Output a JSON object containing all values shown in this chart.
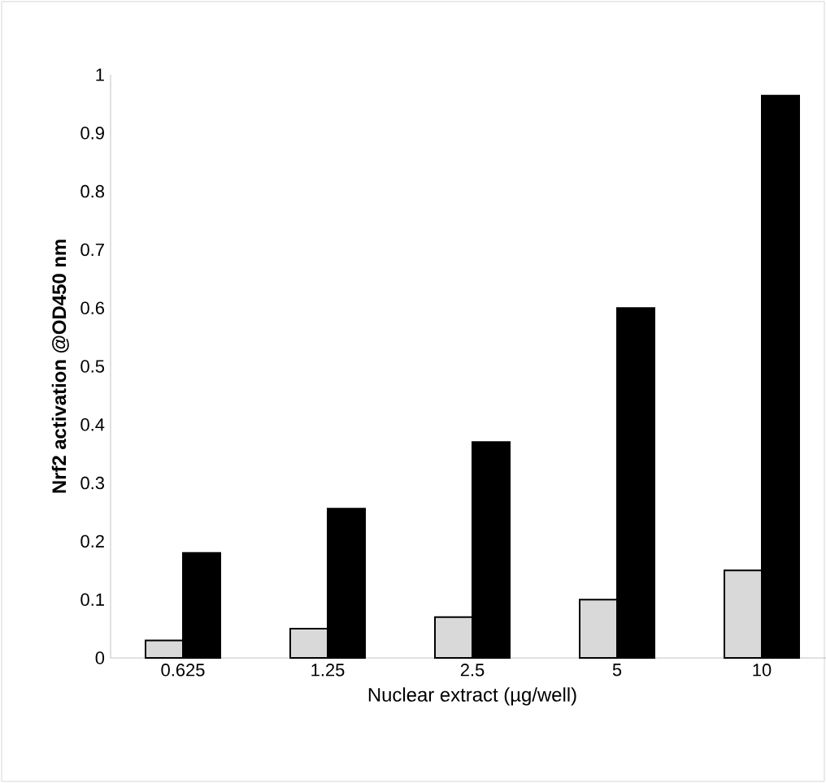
{
  "chart_data": {
    "type": "bar",
    "xlabel": "Nuclear extract (µg/well)",
    "ylabel": "Nrf2 activation @OD450 nm",
    "categories": [
      "0.625",
      "1.25",
      "2.5",
      "5",
      "10"
    ],
    "series": [
      {
        "color": "#d9d9d9",
        "values": [
          0.03,
          0.05,
          0.07,
          0.1,
          0.15
        ]
      },
      {
        "color": "#000000",
        "values": [
          0.18,
          0.256,
          0.37,
          0.6,
          0.964
        ]
      }
    ],
    "ylim": [
      0,
      1
    ],
    "yticks": [
      0,
      0.1,
      0.2,
      0.3,
      0.4,
      0.5,
      0.6,
      0.7,
      0.8,
      0.9,
      1
    ]
  }
}
